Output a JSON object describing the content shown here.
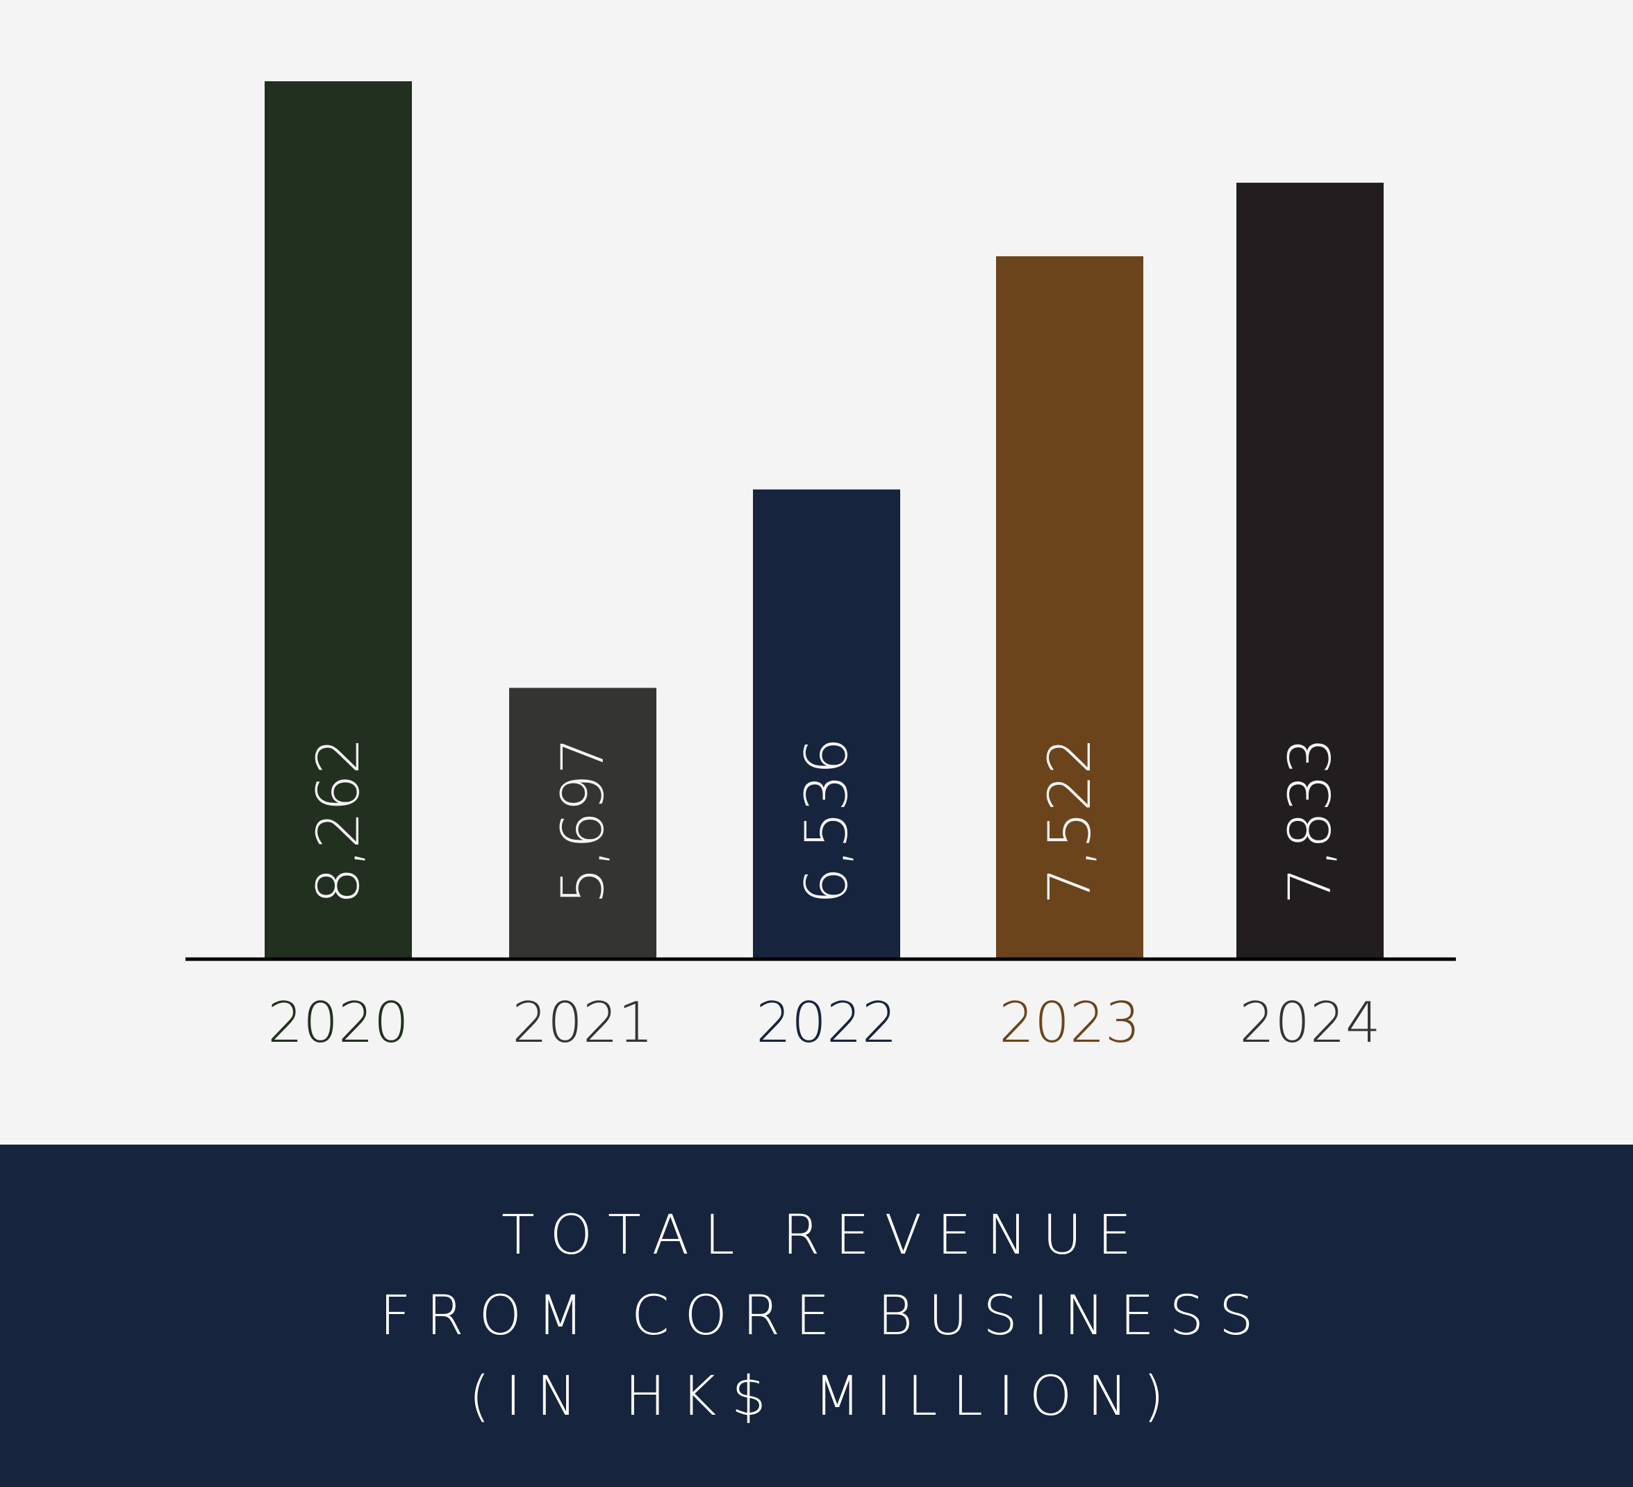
{
  "chart_data": {
    "type": "bar",
    "categories": [
      "2020",
      "2021",
      "2022",
      "2023",
      "2024"
    ],
    "values": [
      8262,
      5697,
      6536,
      7522,
      7833
    ],
    "value_labels": [
      "8,262",
      "5,697",
      "6,536",
      "7,522",
      "7,833"
    ],
    "bar_colors": [
      "#22301f",
      "#343432",
      "#17243e",
      "#6b441b",
      "#221e1f"
    ],
    "category_label_colors": [
      "#22301f",
      "#343432",
      "#17243e",
      "#6b441b",
      "#343432"
    ],
    "value_label_color": "#f5f4f5",
    "title_lines": [
      "TOTAL REVENUE",
      "FROM CORE BUSINESS",
      "(IN HK$ MILLION)"
    ],
    "xlabel": "",
    "ylabel": "",
    "ylim": [
      4550,
      8262
    ],
    "grid": false,
    "legend": "none"
  },
  "colors": {
    "background": "#f5f4f5",
    "title_band": "#17243e",
    "title_text": "#ffffff",
    "axis": "#000000"
  }
}
